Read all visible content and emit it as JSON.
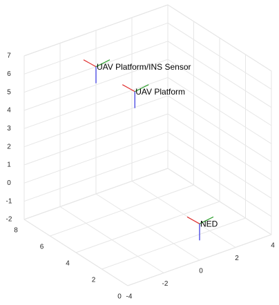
{
  "chart_data": {
    "type": "frames3d",
    "frames": [
      {
        "name": "NED",
        "position": [
          0,
          0,
          0
        ]
      },
      {
        "name": "UAV Platform",
        "position": [
          0,
          5,
          5
        ]
      },
      {
        "name": "UAV Platform/INS Sensor",
        "position": [
          0,
          8,
          5
        ]
      }
    ],
    "xlim": [
      -4,
      4
    ],
    "ylim": [
      0,
      8
    ],
    "zlim": [
      -2,
      7
    ],
    "xticks": [
      -4,
      -2,
      0,
      2,
      4
    ],
    "yticks": [
      0,
      2,
      4,
      6,
      8
    ],
    "zticks": [
      -2,
      -1,
      0,
      1,
      2,
      3,
      4,
      5,
      6,
      7
    ],
    "grid": true
  }
}
